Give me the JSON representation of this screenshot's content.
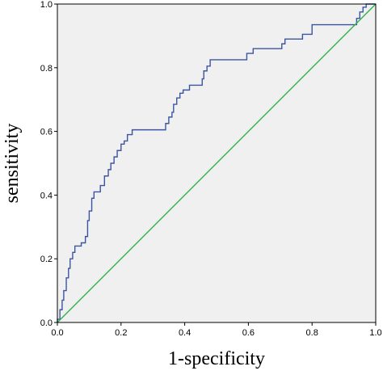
{
  "chart_data": {
    "type": "line",
    "xlabel": "1-specificity",
    "ylabel": "sensitivity",
    "xlim": [
      0,
      1
    ],
    "ylim": [
      0,
      1
    ],
    "x_ticks": [
      "0.0",
      "0.2",
      "0.4",
      "0.6",
      "0.8",
      "1.0"
    ],
    "y_ticks": [
      "0.0",
      "0.2",
      "0.4",
      "0.6",
      "0.8",
      "1.0"
    ],
    "grid": false,
    "legend": "none",
    "plot_background": "#f0f0f0",
    "series": [
      {
        "color": "#3c55a0",
        "points": [
          [
            0.0,
            0.0
          ],
          [
            0.0,
            0.01
          ],
          [
            0.008,
            0.01
          ],
          [
            0.008,
            0.04
          ],
          [
            0.015,
            0.04
          ],
          [
            0.015,
            0.07
          ],
          [
            0.02,
            0.07
          ],
          [
            0.02,
            0.1
          ],
          [
            0.028,
            0.1
          ],
          [
            0.028,
            0.14
          ],
          [
            0.035,
            0.14
          ],
          [
            0.035,
            0.17
          ],
          [
            0.04,
            0.17
          ],
          [
            0.04,
            0.2
          ],
          [
            0.048,
            0.2
          ],
          [
            0.048,
            0.22
          ],
          [
            0.055,
            0.22
          ],
          [
            0.055,
            0.24
          ],
          [
            0.075,
            0.24
          ],
          [
            0.075,
            0.25
          ],
          [
            0.088,
            0.25
          ],
          [
            0.088,
            0.27
          ],
          [
            0.095,
            0.27
          ],
          [
            0.095,
            0.32
          ],
          [
            0.1,
            0.32
          ],
          [
            0.1,
            0.35
          ],
          [
            0.108,
            0.35
          ],
          [
            0.108,
            0.39
          ],
          [
            0.115,
            0.39
          ],
          [
            0.115,
            0.41
          ],
          [
            0.135,
            0.41
          ],
          [
            0.135,
            0.43
          ],
          [
            0.148,
            0.43
          ],
          [
            0.148,
            0.46
          ],
          [
            0.16,
            0.46
          ],
          [
            0.16,
            0.48
          ],
          [
            0.168,
            0.48
          ],
          [
            0.168,
            0.5
          ],
          [
            0.178,
            0.5
          ],
          [
            0.178,
            0.52
          ],
          [
            0.188,
            0.52
          ],
          [
            0.188,
            0.54
          ],
          [
            0.2,
            0.54
          ],
          [
            0.2,
            0.56
          ],
          [
            0.21,
            0.56
          ],
          [
            0.21,
            0.57
          ],
          [
            0.22,
            0.57
          ],
          [
            0.22,
            0.59
          ],
          [
            0.235,
            0.59
          ],
          [
            0.235,
            0.605
          ],
          [
            0.34,
            0.605
          ],
          [
            0.34,
            0.625
          ],
          [
            0.35,
            0.625
          ],
          [
            0.35,
            0.645
          ],
          [
            0.36,
            0.645
          ],
          [
            0.36,
            0.66
          ],
          [
            0.365,
            0.66
          ],
          [
            0.365,
            0.685
          ],
          [
            0.375,
            0.685
          ],
          [
            0.375,
            0.705
          ],
          [
            0.385,
            0.705
          ],
          [
            0.385,
            0.72
          ],
          [
            0.395,
            0.72
          ],
          [
            0.395,
            0.73
          ],
          [
            0.415,
            0.73
          ],
          [
            0.415,
            0.745
          ],
          [
            0.455,
            0.745
          ],
          [
            0.455,
            0.765
          ],
          [
            0.46,
            0.765
          ],
          [
            0.46,
            0.79
          ],
          [
            0.47,
            0.79
          ],
          [
            0.47,
            0.805
          ],
          [
            0.48,
            0.805
          ],
          [
            0.48,
            0.825
          ],
          [
            0.595,
            0.825
          ],
          [
            0.595,
            0.845
          ],
          [
            0.615,
            0.845
          ],
          [
            0.615,
            0.86
          ],
          [
            0.705,
            0.86
          ],
          [
            0.705,
            0.875
          ],
          [
            0.715,
            0.875
          ],
          [
            0.715,
            0.89
          ],
          [
            0.77,
            0.89
          ],
          [
            0.77,
            0.905
          ],
          [
            0.8,
            0.905
          ],
          [
            0.8,
            0.935
          ],
          [
            0.94,
            0.935
          ],
          [
            0.94,
            0.955
          ],
          [
            0.95,
            0.955
          ],
          [
            0.95,
            0.975
          ],
          [
            0.96,
            0.975
          ],
          [
            0.96,
            0.99
          ],
          [
            0.97,
            0.99
          ],
          [
            0.97,
            1.0
          ],
          [
            1.0,
            1.0
          ]
        ]
      },
      {
        "color": "#2db34a",
        "points": [
          [
            0,
            0
          ],
          [
            1,
            1
          ]
        ]
      }
    ]
  }
}
